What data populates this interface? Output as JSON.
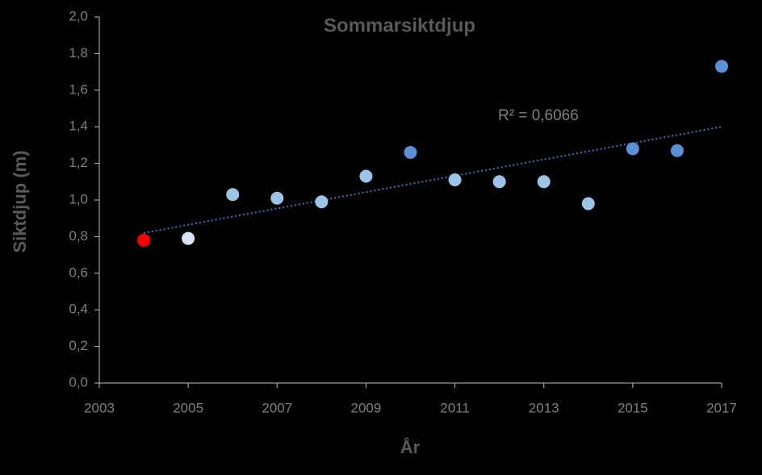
{
  "chart_data": {
    "type": "scatter",
    "title": "Sommarsiktdjup",
    "x_label": "År",
    "y_label": "Siktdjup (m)",
    "x": [
      2004,
      2005,
      2006,
      2007,
      2008,
      2009,
      2010,
      2011,
      2012,
      2013,
      2014,
      2015,
      2016,
      2017
    ],
    "values": [
      0.78,
      0.79,
      1.03,
      1.01,
      0.99,
      1.13,
      1.26,
      1.11,
      1.1,
      1.1,
      0.98,
      1.28,
      1.27,
      1.73
    ],
    "colors": [
      "#ff0000",
      "#dae3f3",
      "#9dc3e6",
      "#9dc3e6",
      "#9dc3e6",
      "#9dc3e6",
      "#5b8fd6",
      "#9dc3e6",
      "#9dc3e6",
      "#9dc3e6",
      "#9dc3e6",
      "#5b8fd6",
      "#5b8fd6",
      "#5b8fd6"
    ],
    "trendline": {
      "x": [
        2004,
        2017
      ],
      "values": [
        0.82,
        1.4
      ],
      "color": "#4472c4",
      "annotation": "R² = 0,6066"
    },
    "xlim": [
      2003,
      2017
    ],
    "ylim": [
      0,
      2
    ],
    "xticks": [
      2003,
      2005,
      2007,
      2009,
      2011,
      2013,
      2015,
      2017
    ],
    "yticks": [
      {
        "value": 0,
        "label": "0,0"
      },
      {
        "value": 0.2,
        "label": "0,2"
      },
      {
        "value": 0.4,
        "label": "0,4"
      },
      {
        "value": 0.6,
        "label": "0,6"
      },
      {
        "value": 0.8,
        "label": "0,8"
      },
      {
        "value": 1.0,
        "label": "1,0"
      },
      {
        "value": 1.2,
        "label": "1,2"
      },
      {
        "value": 1.4,
        "label": "1,4"
      },
      {
        "value": 1.6,
        "label": "1,6"
      },
      {
        "value": 1.8,
        "label": "1,8"
      },
      {
        "value": 2.0,
        "label": "2,0"
      }
    ]
  }
}
